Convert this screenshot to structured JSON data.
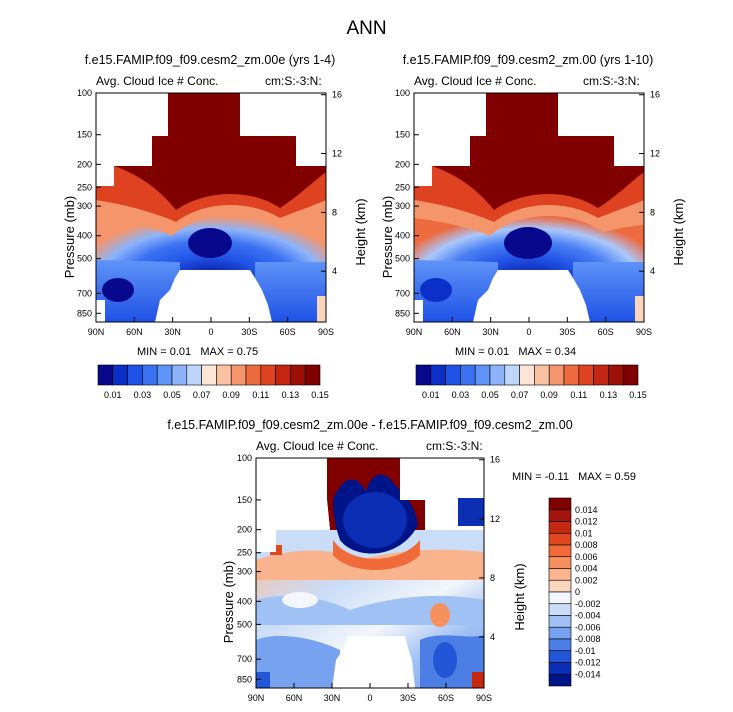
{
  "page": {
    "title": "ANN"
  },
  "colors": {
    "panel_scale_a": [
      "#08088c",
      "#0c2fc8",
      "#1f52e6",
      "#3b72f2",
      "#5f93f7",
      "#8db4fa",
      "#bfd6fc",
      "#fce4d6",
      "#f9c0a2",
      "#f5956b",
      "#ee6a3f",
      "#de4220",
      "#c22612",
      "#9e0f08",
      "#800000"
    ],
    "diff_scale": [
      "#800000",
      "#a3140c",
      "#c42a12",
      "#e2481f",
      "#f16a3a",
      "#f6905f",
      "#f9b48e",
      "#fbd5bc",
      "#f3f6fa",
      "#c9dcf8",
      "#a0c1f4",
      "#77a2ef",
      "#4d7ee6",
      "#2356d6",
      "#0a2fb4",
      "#00148a"
    ]
  },
  "chart_data": [
    {
      "type": "heatmap",
      "title": "f.e15.FAMIP.f09_f09.cesm2_zm.00e (yrs 1-4)",
      "subtitle_left": "Avg. Cloud Ice # Conc.",
      "subtitle_right": "cm:S:-3:N:",
      "ylabel": "Pressure (mb)",
      "ylabel_right": "Height (km)",
      "x_ticks": [
        "90N",
        "60N",
        "30N",
        "0",
        "30S",
        "60S",
        "90S"
      ],
      "y_ticks": [
        "100",
        "150",
        "200",
        "250",
        "300",
        "400",
        "500",
        "700",
        "850"
      ],
      "y_ticks_right": [
        "16",
        "12",
        "8",
        "4"
      ],
      "stats": {
        "min_label": "MIN =",
        "min": "0.01",
        "max_label": "MAX =",
        "max": "0.75"
      },
      "colorbar_labels": [
        "0.01",
        "0.03",
        "0.05",
        "0.07",
        "0.09",
        "0.11",
        "0.13",
        "0.15"
      ]
    },
    {
      "type": "heatmap",
      "title": "f.e15.FAMIP.f09_f09.cesm2_zm.00 (yrs 1-10)",
      "subtitle_left": "Avg. Cloud Ice # Conc.",
      "subtitle_right": "cm:S:-3:N:",
      "ylabel": "Pressure (mb)",
      "ylabel_right": "Height (km)",
      "x_ticks": [
        "90N",
        "60N",
        "30N",
        "0",
        "30S",
        "60S",
        "90S"
      ],
      "y_ticks": [
        "100",
        "150",
        "200",
        "250",
        "300",
        "400",
        "500",
        "700",
        "850"
      ],
      "y_ticks_right": [
        "16",
        "12",
        "8",
        "4"
      ],
      "stats": {
        "min_label": "MIN =",
        "min": "0.01",
        "max_label": "MAX =",
        "max": "0.34"
      },
      "colorbar_labels": [
        "0.01",
        "0.03",
        "0.05",
        "0.07",
        "0.09",
        "0.11",
        "0.13",
        "0.15"
      ]
    },
    {
      "type": "heatmap",
      "title": "f.e15.FAMIP.f09_f09.cesm2_zm.00e - f.e15.FAMIP.f09_f09.cesm2_zm.00",
      "subtitle_left": "Avg. Cloud Ice # Conc.",
      "subtitle_right": "cm:S:-3:N:",
      "ylabel": "Pressure (mb)",
      "ylabel_right": "Height (km)",
      "x_ticks": [
        "90N",
        "60N",
        "30N",
        "0",
        "30S",
        "60S",
        "90S"
      ],
      "y_ticks": [
        "100",
        "150",
        "200",
        "250",
        "300",
        "400",
        "500",
        "700",
        "850"
      ],
      "y_ticks_right": [
        "16",
        "12",
        "8",
        "4"
      ],
      "stats": {
        "min_label": "MIN =",
        "min": "-0.11",
        "max_label": "MAX =",
        "max": "0.59"
      },
      "colorbar_labels": [
        "0.014",
        "0.012",
        "0.01",
        "0.008",
        "0.006",
        "0.004",
        "0.002",
        "0",
        "-0.002",
        "-0.004",
        "-0.006",
        "-0.008",
        "-0.01",
        "-0.012",
        "-0.014"
      ]
    }
  ]
}
